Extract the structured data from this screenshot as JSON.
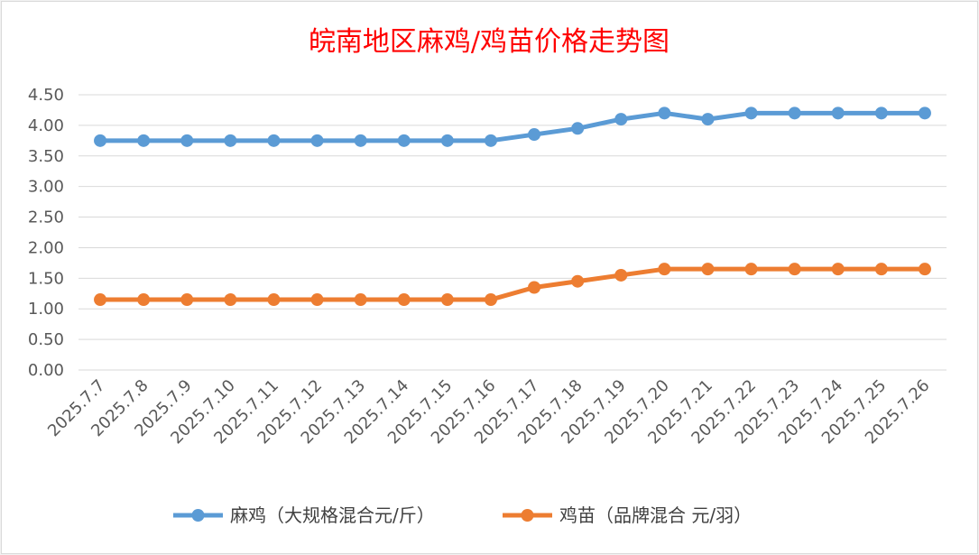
{
  "chart_data": {
    "type": "line",
    "title": "皖南地区麻鸡/鸡苗价格走势图",
    "xlabel": "",
    "ylabel": "",
    "categories": [
      "2025.7.7",
      "2025.7.8",
      "2025.7.9",
      "2025.7.10",
      "2025.7.11",
      "2025.7.12",
      "2025.7.13",
      "2025.7.14",
      "2025.7.15",
      "2025.7.16",
      "2025.7.17",
      "2025.7.18",
      "2025.7.19",
      "2025.7.20",
      "2025.7.21",
      "2025.7.22",
      "2025.7.23",
      "2025.7.24",
      "2025.7.25",
      "2025.7.26"
    ],
    "ylim": [
      0,
      4.5
    ],
    "yticks": [
      "0.00",
      "0.50",
      "1.00",
      "1.50",
      "2.00",
      "2.50",
      "3.00",
      "3.50",
      "4.00",
      "4.50"
    ],
    "grid": true,
    "legend_position": "bottom",
    "series": [
      {
        "name": "麻鸡（大规格混合元/斤）",
        "color": "#5b9bd5",
        "values": [
          3.75,
          3.75,
          3.75,
          3.75,
          3.75,
          3.75,
          3.75,
          3.75,
          3.75,
          3.75,
          3.85,
          3.95,
          4.1,
          4.2,
          4.1,
          4.2,
          4.2,
          4.2,
          4.2,
          4.2
        ]
      },
      {
        "name": "鸡苗（品牌混合 元/羽）",
        "color": "#ed7d31",
        "values": [
          1.15,
          1.15,
          1.15,
          1.15,
          1.15,
          1.15,
          1.15,
          1.15,
          1.15,
          1.15,
          1.35,
          1.45,
          1.55,
          1.65,
          1.65,
          1.65,
          1.65,
          1.65,
          1.65,
          1.65
        ]
      }
    ]
  }
}
